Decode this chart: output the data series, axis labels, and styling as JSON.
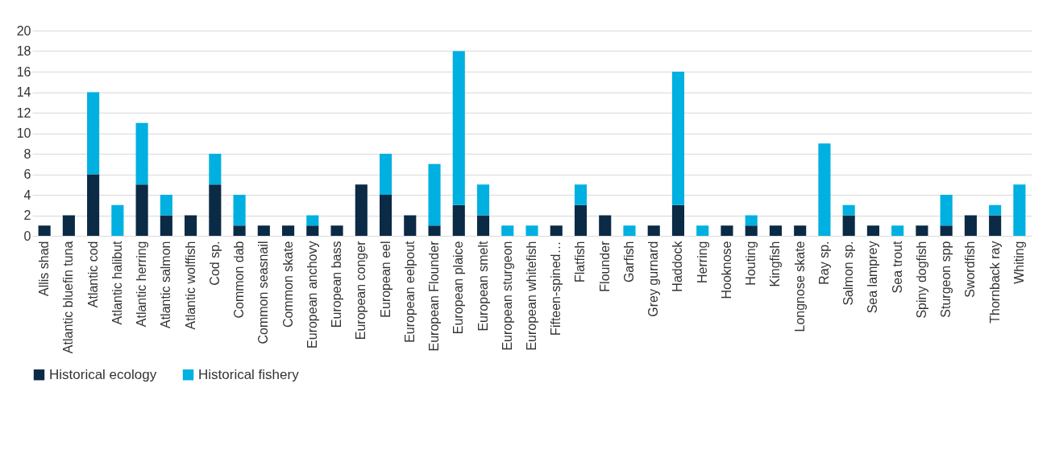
{
  "chart_data": {
    "type": "bar",
    "stacked": true,
    "categories": [
      "Allis shad",
      "Atlantic bluefin tuna",
      "Atlantic cod",
      "Atlantic halibut",
      "Atlantic herring",
      "Atlantic salmon",
      "Atlantic wolffish",
      "Cod sp.",
      "Common dab",
      "Common seasnail",
      "Common skate",
      "European anchovy",
      "European bass",
      "European conger",
      "European eel",
      "European eelpout",
      "European Flounder",
      "European plaice",
      "European smelt",
      "European sturgeon",
      "European whitefish",
      "Fifteen-spined…",
      "Flatfish",
      "Flounder",
      "Garfish",
      "Grey gurnard",
      "Haddock",
      "Herring",
      "Hooknose",
      "Houting",
      "Kingfish",
      "Longnose skate",
      "Ray sp.",
      "Salmon sp.",
      "Sea lamprey",
      "Sea trout",
      "Spiny dogfish",
      "Sturgeon spp",
      "Swordfish",
      "Thornback ray",
      "Whiting"
    ],
    "series": [
      {
        "name": "Historical ecology",
        "color": "#0b2a45",
        "values": [
          1,
          2,
          6,
          0,
          5,
          2,
          2,
          5,
          1,
          1,
          1,
          1,
          1,
          5,
          4,
          2,
          1,
          3,
          2,
          0,
          0,
          1,
          3,
          2,
          0,
          1,
          3,
          0,
          1,
          1,
          1,
          1,
          0,
          2,
          1,
          0,
          1,
          1,
          2,
          2,
          0
        ]
      },
      {
        "name": "Historical fishery",
        "color": "#00b0e0",
        "values": [
          0,
          0,
          8,
          3,
          6,
          2,
          0,
          3,
          3,
          0,
          0,
          1,
          0,
          0,
          4,
          0,
          6,
          15,
          3,
          1,
          1,
          0,
          2,
          0,
          1,
          0,
          13,
          1,
          0,
          1,
          0,
          0,
          9,
          1,
          0,
          1,
          0,
          3,
          0,
          1,
          5
        ]
      }
    ],
    "ylim": [
      0,
      20
    ],
    "yticks": [
      0,
      2,
      4,
      6,
      8,
      10,
      12,
      14,
      16,
      18,
      20
    ],
    "grid": "y",
    "legend": "bottom"
  }
}
